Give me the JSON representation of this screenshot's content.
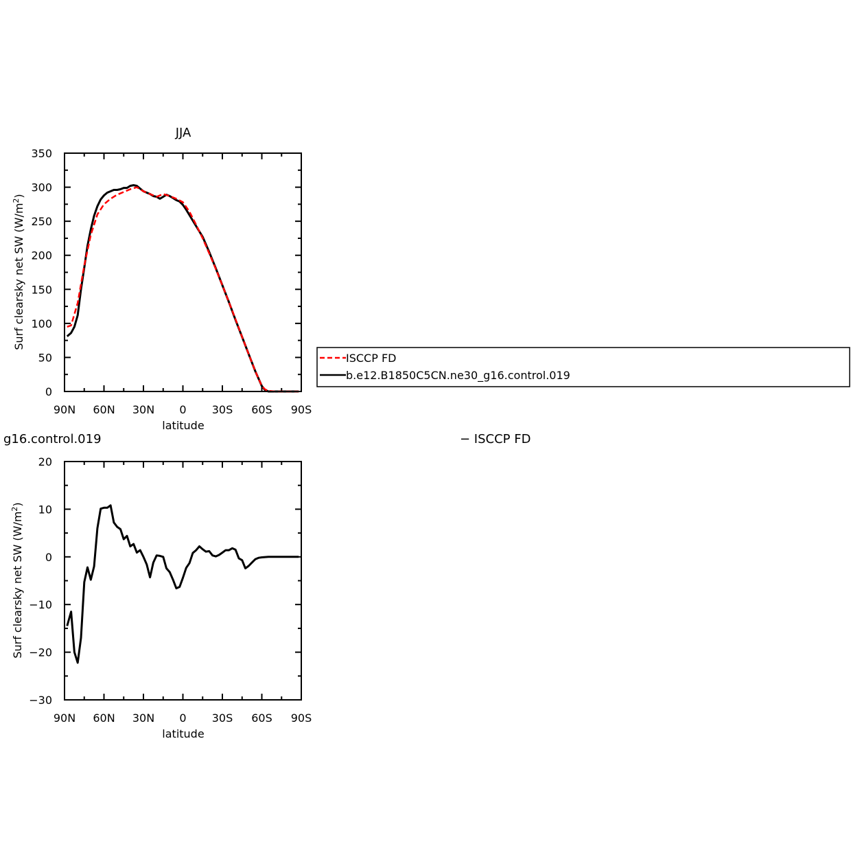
{
  "top_panel": {
    "title": "JJA",
    "ylabel_main": "Surf clearsky net SW (W/m",
    "ylabel_sup": "2",
    "ylabel_end": ")",
    "xlabel": "latitude",
    "legend": {
      "entries": [
        "ISCCP FD",
        "b.e12.B1850C5CN.ne30_g16.control.019"
      ]
    }
  },
  "bottom_panel": {
    "title_left": "g16.control.019",
    "title_right": "− ISCCP FD",
    "ylabel_main": "Surf clearsky net SW (W/m",
    "ylabel_sup": "2",
    "ylabel_end": ")",
    "xlabel": "latitude"
  },
  "colors": {
    "isccp": "#ff0000",
    "model": "#000000"
  },
  "chart_data": [
    {
      "type": "line",
      "x_axis": {
        "range": [
          90,
          -90
        ],
        "ticks": [
          90,
          60,
          30,
          0,
          -30,
          -60,
          -90
        ],
        "tick_labels": [
          "90N",
          "60N",
          "30N",
          "0",
          "30S",
          "60S",
          "90S"
        ]
      },
      "ylim": [
        0,
        350
      ],
      "yticks": [
        0,
        50,
        100,
        150,
        200,
        250,
        300,
        350
      ],
      "series": [
        {
          "name": "ISCCP FD",
          "style": "dashed",
          "x": [
            88,
            85,
            80,
            75,
            70,
            65,
            60,
            55,
            50,
            45,
            40,
            35,
            30,
            25,
            20,
            15,
            10,
            5,
            0,
            -5,
            -10,
            -15,
            -20,
            -25,
            -30,
            -35,
            -40,
            -45,
            -50,
            -55,
            -60,
            -62.5,
            -65,
            -70,
            -75,
            -80,
            -85,
            -88
          ],
          "y": [
            95,
            97,
            130,
            185,
            230,
            260,
            275,
            283,
            289,
            293,
            297,
            300,
            294,
            290,
            286,
            290,
            287,
            283,
            278,
            264,
            245,
            225,
            203,
            180,
            156,
            131,
            106,
            80,
            55,
            30,
            8,
            3,
            1,
            0,
            0,
            0,
            0,
            0
          ]
        },
        {
          "name": "b.e12.B1850C5CN.ne30_g16.control.019",
          "style": "solid",
          "x": [
            88,
            85,
            82.5,
            80,
            77.5,
            75,
            72.5,
            70,
            67.5,
            65,
            62.5,
            60,
            57.5,
            55,
            52.5,
            50,
            47.5,
            45,
            42.5,
            40,
            37.5,
            35,
            32.5,
            30,
            27.5,
            25,
            22.5,
            20,
            17.5,
            15,
            12.5,
            10,
            7.5,
            5,
            2.5,
            0,
            -2.5,
            -5,
            -10,
            -15,
            -20,
            -25,
            -30,
            -35,
            -40,
            -45,
            -50,
            -55,
            -60,
            -62.5,
            -65,
            -70,
            -75,
            -80,
            -85,
            -88
          ],
          "y": [
            81,
            86,
            95,
            112,
            150,
            182,
            214,
            238,
            258,
            272,
            282,
            288,
            292,
            294,
            296,
            296,
            297,
            299,
            299,
            302,
            303,
            302,
            298,
            294,
            292,
            290,
            287,
            286,
            283,
            286,
            289,
            287,
            284,
            281,
            279,
            274,
            267,
            259,
            243,
            227,
            205,
            181,
            156,
            131,
            105,
            80,
            55,
            30,
            8,
            2,
            0,
            0,
            0,
            0,
            0,
            0
          ]
        }
      ]
    },
    {
      "type": "line",
      "x_axis": {
        "range": [
          90,
          -90
        ],
        "ticks": [
          90,
          60,
          30,
          0,
          -30,
          -60,
          -90
        ],
        "tick_labels": [
          "90N",
          "60N",
          "30N",
          "0",
          "30S",
          "60S",
          "90S"
        ]
      },
      "ylim": [
        -30,
        20
      ],
      "yticks": [
        -30,
        -20,
        -10,
        0,
        10,
        20
      ],
      "series": [
        {
          "x": [
            88,
            85,
            82.5,
            80,
            77.5,
            75,
            72.5,
            70,
            67.5,
            65,
            62.5,
            60,
            57.5,
            55,
            52.5,
            50,
            47.5,
            45,
            42.5,
            40,
            37.5,
            35,
            32.5,
            30,
            27.5,
            25,
            22.5,
            20,
            17.5,
            15,
            12.5,
            10,
            7.5,
            5,
            2.5,
            0,
            -2.5,
            -5,
            -7.5,
            -10,
            -12.5,
            -15,
            -17.5,
            -20,
            -22.5,
            -25,
            -27.5,
            -30,
            -32.5,
            -35,
            -37.5,
            -40,
            -42.5,
            -45,
            -47.5,
            -50,
            -52.5,
            -55,
            -57.5,
            -60,
            -62.5,
            -65,
            -67.5,
            -70,
            -72.5,
            -75,
            -77.5,
            -80,
            -82.5,
            -85,
            -88
          ],
          "y": [
            -14.5,
            -11.5,
            -20,
            -22.2,
            -17,
            -5.3,
            -2.2,
            -4.8,
            -2,
            6,
            10.1,
            10.3,
            10.3,
            10.8,
            7.2,
            6.3,
            5.8,
            3.7,
            4.4,
            2.2,
            2.7,
            0.9,
            1.4,
            0,
            -1.6,
            -4.3,
            -1.2,
            0.3,
            0.2,
            0,
            -2.4,
            -3.2,
            -4.8,
            -6.6,
            -6.3,
            -4.4,
            -2.3,
            -1.3,
            0.8,
            1.4,
            2.2,
            1.6,
            1.1,
            1.2,
            0.3,
            0.1,
            0.4,
            0.9,
            1.4,
            1.4,
            1.8,
            1.5,
            -0.3,
            -0.7,
            -2.4,
            -1.9,
            -1.2,
            -0.5,
            -0.2,
            -0.1,
            -0.05,
            0,
            0,
            0,
            0,
            0,
            0,
            0,
            0,
            0,
            0
          ]
        }
      ]
    }
  ]
}
